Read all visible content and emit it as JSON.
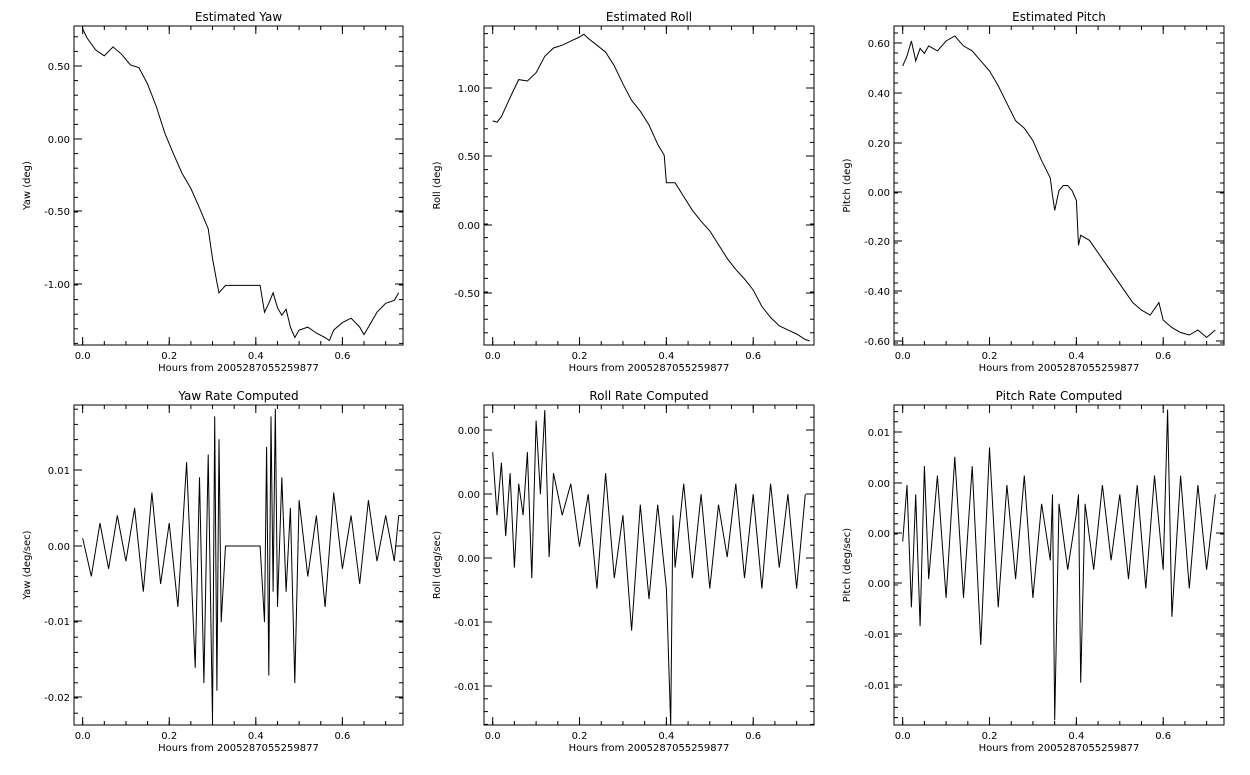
{
  "chart_data": [
    {
      "type": "line",
      "title": "Estimated Yaw",
      "xlabel": "Hours from 2005287055259877",
      "ylabel": "Yaw (deg)",
      "xlim": [
        -0.02,
        0.74
      ],
      "ylim": [
        -1.4,
        0.74
      ],
      "xticks": [
        "0.0",
        "0.2",
        "0.4",
        "0.6"
      ],
      "yticks": [
        "0.50",
        "0.00",
        "-0.50",
        "-1.00"
      ],
      "series": [
        {
          "x": [
            0.0,
            0.01,
            0.03,
            0.05,
            0.07,
            0.09,
            0.11,
            0.13,
            0.15,
            0.17,
            0.19,
            0.21,
            0.23,
            0.25,
            0.27,
            0.29,
            0.3,
            0.31,
            0.315,
            0.33,
            0.36,
            0.38,
            0.4,
            0.41,
            0.42,
            0.43,
            0.44,
            0.45,
            0.46,
            0.47,
            0.48,
            0.49,
            0.5,
            0.52,
            0.54,
            0.56,
            0.57,
            0.58,
            0.6,
            0.62,
            0.64,
            0.65,
            0.66,
            0.68,
            0.7,
            0.72,
            0.73
          ],
          "y": [
            0.72,
            0.66,
            0.58,
            0.54,
            0.6,
            0.55,
            0.48,
            0.46,
            0.35,
            0.2,
            0.02,
            -0.12,
            -0.25,
            -0.35,
            -0.48,
            -0.62,
            -0.82,
            -0.98,
            -1.05,
            -1.0,
            -1.0,
            -1.0,
            -1.0,
            -1.0,
            -1.18,
            -1.12,
            -1.05,
            -1.15,
            -1.2,
            -1.16,
            -1.28,
            -1.35,
            -1.3,
            -1.28,
            -1.32,
            -1.35,
            -1.37,
            -1.3,
            -1.25,
            -1.22,
            -1.28,
            -1.33,
            -1.28,
            -1.18,
            -1.12,
            -1.1,
            -1.05
          ]
        }
      ]
    },
    {
      "type": "line",
      "title": "Estimated Roll",
      "xlabel": "Hours from 2005287055259877",
      "ylabel": "Roll (deg)",
      "xlim": [
        -0.02,
        0.74
      ],
      "ylim": [
        -0.88,
        1.44
      ],
      "xticks": [
        "0.0",
        "0.2",
        "0.4",
        "0.6"
      ],
      "yticks": [
        "1.00",
        "0.50",
        "0.00",
        "-0.50"
      ],
      "series": [
        {
          "x": [
            0.0,
            0.01,
            0.02,
            0.04,
            0.06,
            0.08,
            0.1,
            0.12,
            0.14,
            0.16,
            0.18,
            0.2,
            0.21,
            0.22,
            0.24,
            0.26,
            0.28,
            0.3,
            0.32,
            0.34,
            0.36,
            0.38,
            0.395,
            0.4,
            0.42,
            0.44,
            0.46,
            0.48,
            0.5,
            0.52,
            0.54,
            0.56,
            0.58,
            0.6,
            0.62,
            0.64,
            0.66,
            0.68,
            0.7,
            0.72,
            0.73
          ],
          "y": [
            0.75,
            0.74,
            0.78,
            0.92,
            1.05,
            1.04,
            1.1,
            1.22,
            1.28,
            1.3,
            1.33,
            1.36,
            1.38,
            1.35,
            1.3,
            1.25,
            1.15,
            1.02,
            0.9,
            0.82,
            0.72,
            0.58,
            0.5,
            0.3,
            0.3,
            0.2,
            0.1,
            0.02,
            -0.05,
            -0.15,
            -0.25,
            -0.33,
            -0.4,
            -0.48,
            -0.6,
            -0.68,
            -0.74,
            -0.77,
            -0.8,
            -0.84,
            -0.85
          ]
        }
      ]
    },
    {
      "type": "line",
      "title": "Estimated Pitch",
      "xlabel": "Hours from 2005287055259877",
      "ylabel": "Pitch (deg)",
      "xlim": [
        -0.02,
        0.74
      ],
      "ylim": [
        -0.62,
        0.66
      ],
      "xticks": [
        "0.0",
        "0.2",
        "0.4",
        "0.6"
      ],
      "yticks": [
        "0.60",
        "0.40",
        "0.20",
        "0.00",
        "-0.20",
        "-0.40",
        "-0.60"
      ],
      "series": [
        {
          "x": [
            0.0,
            0.01,
            0.02,
            0.03,
            0.04,
            0.05,
            0.06,
            0.08,
            0.1,
            0.12,
            0.14,
            0.16,
            0.18,
            0.2,
            0.22,
            0.24,
            0.26,
            0.28,
            0.3,
            0.32,
            0.34,
            0.345,
            0.35,
            0.36,
            0.37,
            0.38,
            0.39,
            0.4,
            0.405,
            0.41,
            0.43,
            0.45,
            0.47,
            0.49,
            0.51,
            0.53,
            0.55,
            0.57,
            0.59,
            0.6,
            0.62,
            0.64,
            0.66,
            0.68,
            0.7,
            0.72
          ],
          "y": [
            0.5,
            0.54,
            0.6,
            0.52,
            0.57,
            0.55,
            0.58,
            0.56,
            0.6,
            0.62,
            0.58,
            0.56,
            0.52,
            0.48,
            0.42,
            0.35,
            0.28,
            0.25,
            0.2,
            0.12,
            0.05,
            -0.02,
            -0.08,
            0.0,
            0.02,
            0.02,
            0.0,
            -0.04,
            -0.22,
            -0.18,
            -0.2,
            -0.25,
            -0.3,
            -0.35,
            -0.4,
            -0.45,
            -0.48,
            -0.5,
            -0.45,
            -0.52,
            -0.55,
            -0.57,
            -0.58,
            -0.56,
            -0.59,
            -0.56
          ]
        }
      ]
    },
    {
      "type": "line",
      "title": "Yaw Rate Computed",
      "xlabel": "Hours from 2005287055259877",
      "ylabel": "Yaw (deg/sec)",
      "xlim": [
        -0.02,
        0.74
      ],
      "ylim": [
        -0.0235,
        0.0185
      ],
      "xticks": [
        "0.0",
        "0.2",
        "0.4",
        "0.6"
      ],
      "yticks": [
        "0.01",
        "0.00",
        "-0.01",
        "-0.02"
      ],
      "series": [
        {
          "x": [
            0.0,
            0.02,
            0.04,
            0.06,
            0.08,
            0.1,
            0.12,
            0.14,
            0.16,
            0.18,
            0.2,
            0.22,
            0.24,
            0.26,
            0.27,
            0.28,
            0.29,
            0.3,
            0.305,
            0.31,
            0.315,
            0.32,
            0.33,
            0.35,
            0.38,
            0.41,
            0.42,
            0.425,
            0.43,
            0.435,
            0.44,
            0.445,
            0.45,
            0.46,
            0.47,
            0.48,
            0.49,
            0.5,
            0.52,
            0.54,
            0.56,
            0.58,
            0.6,
            0.62,
            0.64,
            0.66,
            0.68,
            0.7,
            0.72,
            0.73
          ],
          "y": [
            0.001,
            -0.004,
            0.003,
            -0.003,
            0.004,
            -0.002,
            0.005,
            -0.006,
            0.007,
            -0.005,
            0.003,
            -0.008,
            0.011,
            -0.016,
            0.009,
            -0.018,
            0.012,
            -0.023,
            0.017,
            -0.019,
            0.014,
            -0.01,
            0.0,
            0.0,
            0.0,
            0.0,
            -0.01,
            0.013,
            -0.017,
            0.017,
            -0.006,
            0.018,
            -0.008,
            0.009,
            -0.006,
            0.005,
            -0.018,
            0.006,
            -0.004,
            0.004,
            -0.008,
            0.007,
            -0.003,
            0.004,
            -0.005,
            0.006,
            -0.002,
            0.004,
            -0.002,
            0.004
          ]
        }
      ]
    },
    {
      "type": "line",
      "title": "Roll Rate Computed",
      "xlabel": "Hours from 2005287055259877",
      "ylabel": "Roll (deg/sec)",
      "xlim": [
        -0.02,
        0.74
      ],
      "ylim": [
        -0.018,
        0.0125
      ],
      "xticks": [
        "0.0",
        "0.2",
        "0.4",
        "0.6"
      ],
      "yticks": [
        "0.00",
        "0.00",
        "0.00",
        "-0.01",
        "-0.01"
      ],
      "series": [
        {
          "x": [
            0.0,
            0.01,
            0.02,
            0.03,
            0.04,
            0.05,
            0.06,
            0.07,
            0.08,
            0.09,
            0.1,
            0.11,
            0.12,
            0.13,
            0.14,
            0.16,
            0.18,
            0.2,
            0.22,
            0.24,
            0.26,
            0.28,
            0.3,
            0.32,
            0.34,
            0.36,
            0.38,
            0.4,
            0.41,
            0.415,
            0.42,
            0.44,
            0.46,
            0.48,
            0.5,
            0.52,
            0.54,
            0.56,
            0.58,
            0.6,
            0.62,
            0.64,
            0.66,
            0.68,
            0.7,
            0.72
          ],
          "y": [
            0.008,
            0.002,
            0.007,
            0.0,
            0.006,
            -0.003,
            0.005,
            0.002,
            0.008,
            -0.004,
            0.011,
            0.004,
            0.012,
            -0.002,
            0.006,
            0.002,
            0.005,
            -0.001,
            0.004,
            -0.005,
            0.006,
            -0.004,
            0.002,
            -0.009,
            0.003,
            -0.006,
            0.003,
            -0.005,
            -0.018,
            0.002,
            -0.003,
            0.005,
            -0.004,
            0.004,
            -0.005,
            0.003,
            -0.002,
            0.005,
            -0.004,
            0.004,
            -0.005,
            0.005,
            -0.003,
            0.004,
            -0.005,
            0.004
          ]
        }
      ]
    },
    {
      "type": "line",
      "title": "Pitch Rate Computed",
      "xlabel": "Hours from 2005287055259877",
      "ylabel": "Pitch (deg/sec)",
      "xlim": [
        -0.02,
        0.74
      ],
      "ylim": [
        -0.0195,
        0.0145
      ],
      "xticks": [
        "0.0",
        "0.2",
        "0.4",
        "0.6"
      ],
      "yticks": [
        "0.01",
        "0.00",
        "0.00",
        "0.00",
        "-0.01",
        "-0.01"
      ],
      "series": [
        {
          "x": [
            0.0,
            0.01,
            0.02,
            0.03,
            0.04,
            0.05,
            0.06,
            0.08,
            0.1,
            0.12,
            0.14,
            0.16,
            0.18,
            0.2,
            0.22,
            0.24,
            0.26,
            0.28,
            0.3,
            0.32,
            0.34,
            0.345,
            0.35,
            0.36,
            0.38,
            0.4,
            0.405,
            0.41,
            0.42,
            0.44,
            0.46,
            0.48,
            0.5,
            0.52,
            0.54,
            0.56,
            0.58,
            0.6,
            0.61,
            0.62,
            0.64,
            0.66,
            0.68,
            0.7,
            0.72
          ],
          "y": [
            0.0,
            0.006,
            -0.007,
            0.005,
            -0.009,
            0.008,
            -0.004,
            0.007,
            -0.006,
            0.009,
            -0.006,
            0.008,
            -0.011,
            0.01,
            -0.007,
            0.006,
            -0.004,
            0.007,
            -0.006,
            0.004,
            -0.002,
            0.005,
            -0.019,
            0.004,
            -0.003,
            0.003,
            0.005,
            -0.015,
            0.004,
            -0.003,
            0.006,
            -0.002,
            0.005,
            -0.004,
            0.006,
            -0.005,
            0.007,
            -0.003,
            0.014,
            -0.008,
            0.007,
            -0.005,
            0.006,
            -0.003,
            0.005
          ]
        }
      ]
    }
  ]
}
